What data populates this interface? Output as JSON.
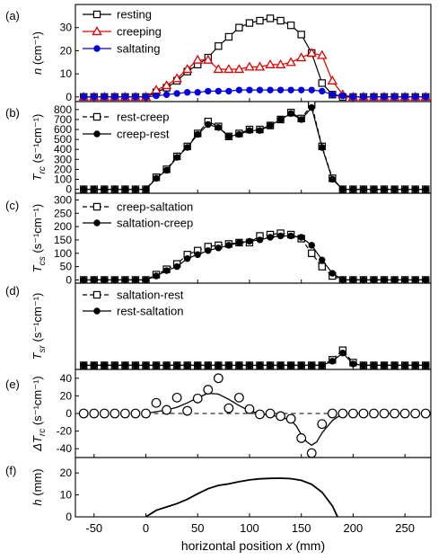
{
  "figure": {
    "xlabel": "horizontal position x (mm)",
    "xticks": [
      -50,
      0,
      50,
      100,
      150,
      200,
      250
    ],
    "xlim": [
      -68,
      275
    ]
  },
  "chart_data": [
    {
      "type": "line",
      "panel": "(a)",
      "ylabel": "n (cm⁻¹)",
      "ylim": [
        -2,
        40
      ],
      "yticks": [
        0,
        10,
        20,
        30
      ],
      "legend_position": "top-left",
      "series": [
        {
          "name": "resting",
          "color": "#000000",
          "marker": "open-square",
          "x": [
            -60,
            -50,
            -40,
            -30,
            -20,
            -10,
            0,
            10,
            20,
            30,
            40,
            50,
            60,
            70,
            80,
            90,
            100,
            110,
            120,
            130,
            140,
            150,
            160,
            170,
            180,
            190,
            200,
            210,
            220,
            230,
            240,
            250,
            260,
            270
          ],
          "y": [
            0,
            0,
            0,
            0,
            0,
            0,
            0,
            2,
            4,
            7,
            11,
            14,
            17,
            22,
            26,
            30,
            32,
            33,
            34,
            33,
            31,
            27,
            19,
            6,
            1,
            0,
            0,
            0,
            0,
            0,
            0,
            0,
            0,
            0
          ]
        },
        {
          "name": "creeping",
          "color": "#e00000",
          "marker": "open-triangle",
          "x": [
            -60,
            -50,
            -40,
            -30,
            -20,
            -10,
            0,
            10,
            20,
            30,
            40,
            50,
            60,
            70,
            80,
            90,
            100,
            110,
            120,
            130,
            140,
            150,
            160,
            170,
            180,
            190,
            200,
            210,
            220,
            230,
            240,
            250,
            260,
            270
          ],
          "y": [
            0,
            0,
            0,
            0,
            0,
            0,
            0,
            3,
            5,
            8,
            12,
            16,
            16,
            12,
            12,
            12,
            13,
            13,
            14,
            14,
            15,
            17,
            19,
            18,
            7,
            1,
            0,
            0,
            0,
            0,
            0,
            0,
            0,
            0
          ]
        },
        {
          "name": "saltating",
          "color": "#0000e0",
          "marker": "filled-circle",
          "x": [
            -60,
            -50,
            -40,
            -30,
            -20,
            -10,
            0,
            10,
            20,
            30,
            40,
            50,
            60,
            70,
            80,
            90,
            100,
            110,
            120,
            130,
            140,
            150,
            160,
            170,
            180,
            190,
            200,
            210,
            220,
            230,
            240,
            250,
            260,
            270
          ],
          "y": [
            0,
            0,
            0,
            0,
            0,
            0,
            0,
            0.5,
            1,
            1.5,
            2,
            2,
            2.5,
            2.5,
            2.5,
            3,
            3,
            3,
            3,
            3,
            3,
            3,
            3,
            2.5,
            1,
            0.5,
            0,
            0,
            0,
            0,
            0,
            0,
            0,
            0
          ]
        }
      ]
    },
    {
      "type": "line",
      "panel": "(b)",
      "ylabel": "T_rc (s⁻¹cm⁻¹)",
      "ylim": [
        -40,
        880
      ],
      "yticks": [
        0,
        100,
        200,
        300,
        400,
        500,
        600,
        700,
        800
      ],
      "legend_position": "top-left",
      "series": [
        {
          "name": "rest-creep",
          "color": "#000000",
          "marker": "open-square",
          "line": "dashed",
          "x": [
            -60,
            -50,
            -40,
            -30,
            -20,
            -10,
            0,
            10,
            20,
            30,
            40,
            50,
            60,
            70,
            80,
            90,
            100,
            110,
            120,
            130,
            140,
            150,
            160,
            170,
            180,
            190,
            200,
            210,
            220,
            230,
            240,
            250,
            260,
            270
          ],
          "y": [
            0,
            0,
            0,
            0,
            0,
            0,
            0,
            120,
            200,
            330,
            430,
            560,
            680,
            630,
            530,
            560,
            600,
            600,
            640,
            700,
            770,
            710,
            850,
            430,
            110,
            0,
            0,
            0,
            0,
            0,
            0,
            0,
            0,
            0
          ]
        },
        {
          "name": "creep-rest",
          "color": "#000000",
          "marker": "filled-circle",
          "line": "solid",
          "x": [
            -60,
            -50,
            -40,
            -30,
            -20,
            -10,
            0,
            10,
            20,
            30,
            40,
            50,
            60,
            70,
            80,
            90,
            100,
            110,
            120,
            130,
            140,
            150,
            160,
            170,
            180,
            190,
            200,
            210,
            220,
            230,
            240,
            250,
            260,
            270
          ],
          "y": [
            0,
            0,
            0,
            0,
            0,
            0,
            0,
            110,
            190,
            320,
            420,
            550,
            650,
            620,
            530,
            550,
            590,
            590,
            640,
            700,
            760,
            700,
            820,
            420,
            100,
            0,
            0,
            0,
            0,
            0,
            0,
            0,
            0,
            0
          ]
        }
      ]
    },
    {
      "type": "line",
      "panel": "(c)",
      "ylabel": "T_cs (s⁻¹cm⁻¹)",
      "ylim": [
        -12,
        325
      ],
      "yticks": [
        0,
        50,
        100,
        150,
        200,
        250,
        300
      ],
      "legend_position": "top-left",
      "series": [
        {
          "name": "creep-saltation",
          "color": "#000000",
          "marker": "open-square",
          "line": "dashed",
          "x": [
            -60,
            -50,
            -40,
            -30,
            -20,
            -10,
            0,
            10,
            20,
            30,
            40,
            50,
            60,
            70,
            80,
            90,
            100,
            110,
            120,
            130,
            140,
            150,
            160,
            170,
            180,
            190,
            200,
            210,
            220,
            230,
            240,
            250,
            260,
            270
          ],
          "y": [
            0,
            0,
            0,
            0,
            0,
            0,
            0,
            20,
            40,
            60,
            95,
            110,
            125,
            130,
            135,
            140,
            140,
            165,
            170,
            175,
            170,
            155,
            100,
            50,
            15,
            0,
            0,
            0,
            0,
            0,
            0,
            0,
            0,
            0
          ]
        },
        {
          "name": "saltation-creep",
          "color": "#000000",
          "marker": "filled-circle",
          "line": "solid",
          "x": [
            -60,
            -50,
            -40,
            -30,
            -20,
            -10,
            0,
            10,
            20,
            30,
            40,
            50,
            60,
            70,
            80,
            90,
            100,
            110,
            120,
            130,
            140,
            150,
            160,
            170,
            180,
            190,
            200,
            210,
            220,
            230,
            240,
            250,
            260,
            270
          ],
          "y": [
            0,
            0,
            0,
            0,
            0,
            0,
            0,
            15,
            35,
            50,
            80,
            95,
            110,
            120,
            130,
            140,
            145,
            150,
            160,
            165,
            165,
            160,
            130,
            75,
            25,
            0,
            0,
            0,
            0,
            0,
            0,
            0,
            0,
            0
          ]
        }
      ]
    },
    {
      "type": "line",
      "panel": "(d)",
      "ylabel": "T_sr (s⁻¹cm⁻¹)",
      "ylim": [
        -3,
        60
      ],
      "yticks": [],
      "legend_position": "top-left",
      "series": [
        {
          "name": "saltation-rest",
          "color": "#000000",
          "marker": "open-square",
          "line": "dashed",
          "x": [
            -60,
            -50,
            -40,
            -30,
            -20,
            -10,
            0,
            10,
            20,
            30,
            40,
            50,
            60,
            70,
            80,
            90,
            100,
            110,
            120,
            130,
            140,
            150,
            160,
            170,
            180,
            190,
            200,
            210,
            220,
            230,
            240,
            250,
            260,
            270
          ],
          "y": [
            0,
            0,
            0,
            0,
            0,
            0,
            0,
            0,
            0,
            0,
            0,
            0,
            0,
            0,
            0,
            0,
            0,
            0,
            0,
            0,
            0,
            0,
            0,
            0,
            4,
            11,
            2,
            0,
            0,
            0,
            0,
            0,
            0,
            0
          ]
        },
        {
          "name": "rest-saltation",
          "color": "#000000",
          "marker": "filled-circle",
          "line": "solid",
          "x": [
            -60,
            -50,
            -40,
            -30,
            -20,
            -10,
            0,
            10,
            20,
            30,
            40,
            50,
            60,
            70,
            80,
            90,
            100,
            110,
            120,
            130,
            140,
            150,
            160,
            170,
            180,
            190,
            200,
            210,
            220,
            230,
            240,
            250,
            260,
            270
          ],
          "y": [
            0,
            0,
            0,
            0,
            0,
            0,
            0,
            0,
            0,
            0,
            0,
            0,
            0,
            0,
            0,
            0,
            0,
            0,
            0,
            0,
            0,
            0,
            0,
            0,
            3,
            9,
            1,
            0,
            0,
            0,
            0,
            0,
            0,
            0
          ]
        }
      ]
    },
    {
      "type": "scatter",
      "panel": "(e)",
      "ylabel": "ΔT_rc (s⁻¹cm⁻¹)",
      "ylim": [
        -50,
        50
      ],
      "yticks": [
        -40,
        -20,
        0,
        20,
        40
      ],
      "series": [
        {
          "marker": "open-circle",
          "color": "#000000",
          "x": [
            -60,
            -50,
            -40,
            -30,
            -20,
            -10,
            0,
            10,
            20,
            30,
            40,
            50,
            60,
            70,
            80,
            90,
            100,
            110,
            120,
            130,
            140,
            150,
            160,
            170,
            180,
            190,
            200,
            210,
            220,
            230,
            240,
            250,
            260,
            270
          ],
          "y": [
            0,
            0,
            0,
            0,
            0,
            0,
            0,
            12,
            4,
            18,
            3,
            17,
            27,
            40,
            6,
            18,
            5,
            -1,
            0,
            -3,
            -6,
            -28,
            -45,
            -12,
            0,
            0,
            0,
            0,
            0,
            0,
            0,
            0,
            0,
            0
          ]
        }
      ],
      "fit_curve": {
        "line": "solid",
        "x": [
          0,
          10,
          20,
          30,
          40,
          50,
          60,
          70,
          80,
          90,
          100,
          110,
          120,
          130,
          140,
          145,
          150,
          155,
          160,
          165,
          170,
          180,
          190
        ],
        "y": [
          0,
          2,
          4,
          7,
          12,
          18,
          23,
          22,
          16,
          9,
          3,
          0,
          -2,
          -4,
          -8,
          -14,
          -24,
          -32,
          -36,
          -32,
          -22,
          -8,
          0
        ]
      },
      "reference_line": {
        "y": 0,
        "line": "dashed"
      }
    },
    {
      "type": "line",
      "panel": "(f)",
      "ylabel": "h (mm)",
      "ylim": [
        0,
        27
      ],
      "yticks": [
        0,
        10,
        20
      ],
      "series": [
        {
          "color": "#000000",
          "line": "solid",
          "x": [
            0,
            10,
            20,
            30,
            40,
            50,
            60,
            70,
            80,
            90,
            100,
            110,
            120,
            130,
            140,
            150,
            160,
            170,
            180,
            185
          ],
          "y": [
            0,
            3,
            4.5,
            6,
            8,
            10.5,
            12.8,
            14.3,
            15,
            16,
            16.8,
            17.3,
            17.5,
            17.6,
            17.4,
            16.6,
            14.8,
            11.2,
            5,
            0
          ]
        }
      ]
    }
  ]
}
